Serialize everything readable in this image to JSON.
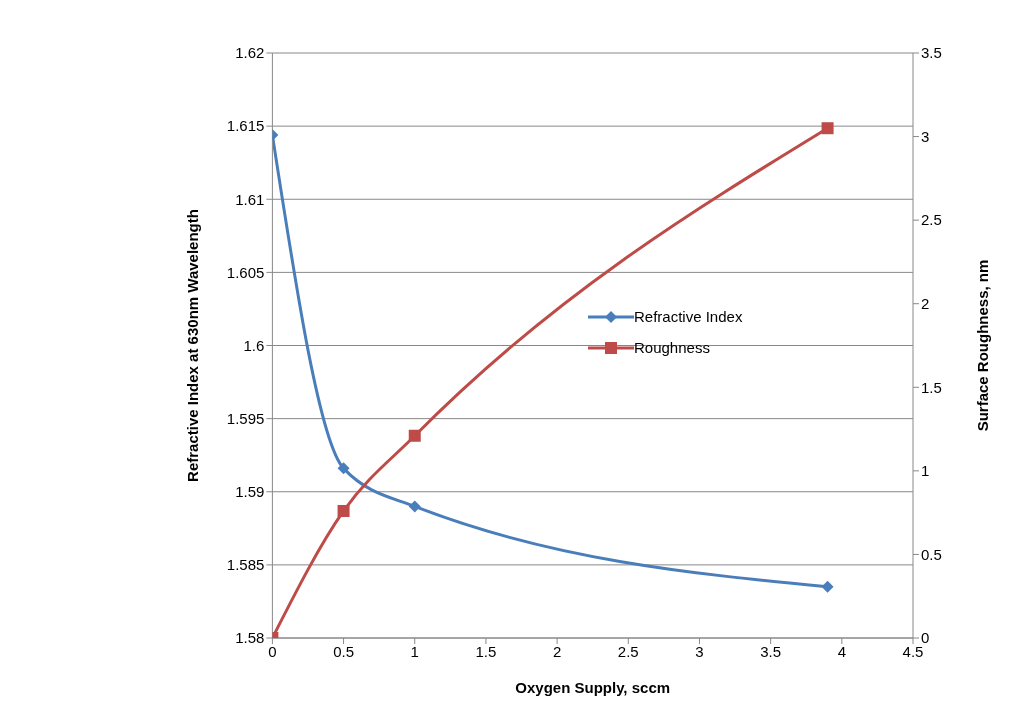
{
  "chart_data": {
    "type": "line",
    "xlabel": "Oxygen Supply, sccm",
    "ylabel": "Refractive Index at 630nm Wavelength",
    "y2label": "Surface Roughness, nm",
    "x": [
      0,
      0.5,
      1,
      3.9
    ],
    "series": [
      {
        "name": "Refractive Index",
        "color": "#4a7ebb",
        "marker": "diamond",
        "values": [
          1.6144,
          1.5916,
          1.589,
          1.5835
        ]
      },
      {
        "name": "Roughness",
        "color": "#be4b48",
        "marker": "square",
        "axis": "y2",
        "values": [
          0,
          0.76,
          1.21,
          3.05
        ]
      }
    ],
    "xlim": [
      0,
      4.5
    ],
    "xticks": [
      0,
      0.5,
      1,
      1.5,
      2,
      2.5,
      3,
      3.5,
      4,
      4.5
    ],
    "ylim": [
      1.58,
      1.62
    ],
    "yticks": [
      1.58,
      1.585,
      1.59,
      1.595,
      1.6,
      1.605,
      1.61,
      1.615,
      1.62
    ],
    "y2lim": [
      0,
      3.5
    ],
    "y2ticks": [
      0,
      0.5,
      1,
      1.5,
      2,
      2.5,
      3,
      3.5
    ],
    "grid": "y",
    "legend": "right",
    "line_style": "solid"
  }
}
